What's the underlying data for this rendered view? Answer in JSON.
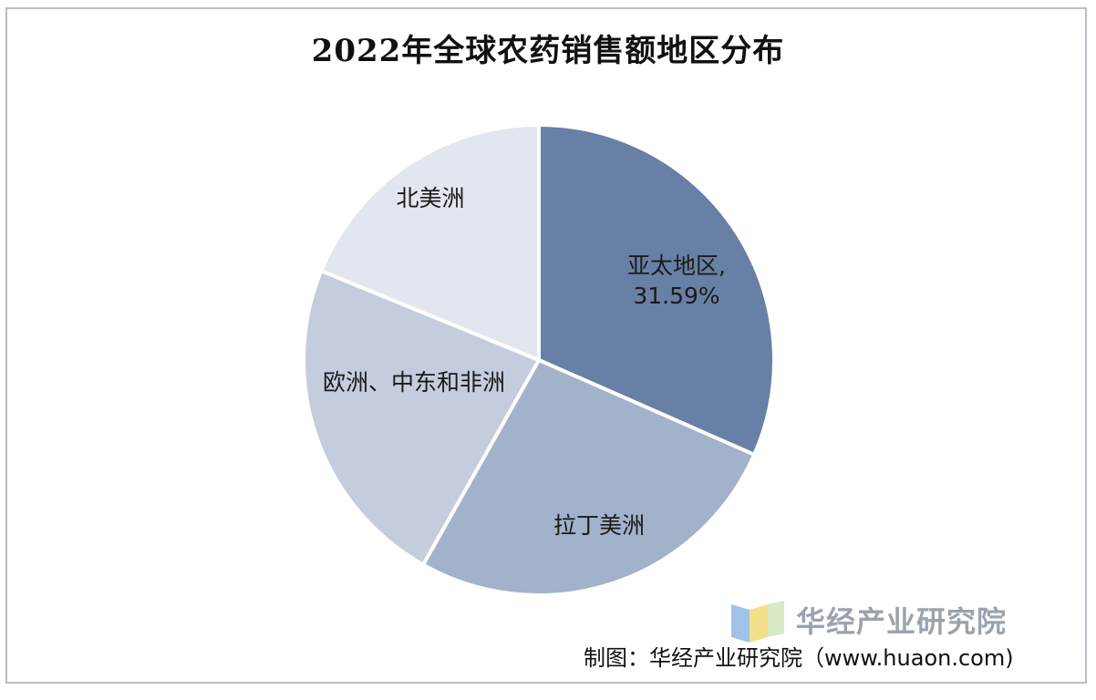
{
  "chart_data": {
    "type": "pie",
    "title": "2022年全球农药销售额地区分布",
    "slices": [
      {
        "label": "亚太地区,",
        "value_label": "31.59%",
        "value": 31.59,
        "color": "#6880a6"
      },
      {
        "label": "拉丁美洲",
        "value": 26.6,
        "color": "#a3b2cb"
      },
      {
        "label": "欧洲、中东和非洲",
        "value": 23.0,
        "color": "#c4cddd"
      },
      {
        "label": "北美洲",
        "value": 18.81,
        "color": "#e2e6ef"
      }
    ]
  },
  "watermark": {
    "text": "华经产业研究院"
  },
  "source": {
    "text": "制图：华经产业研究院（www.huaon.com)"
  }
}
